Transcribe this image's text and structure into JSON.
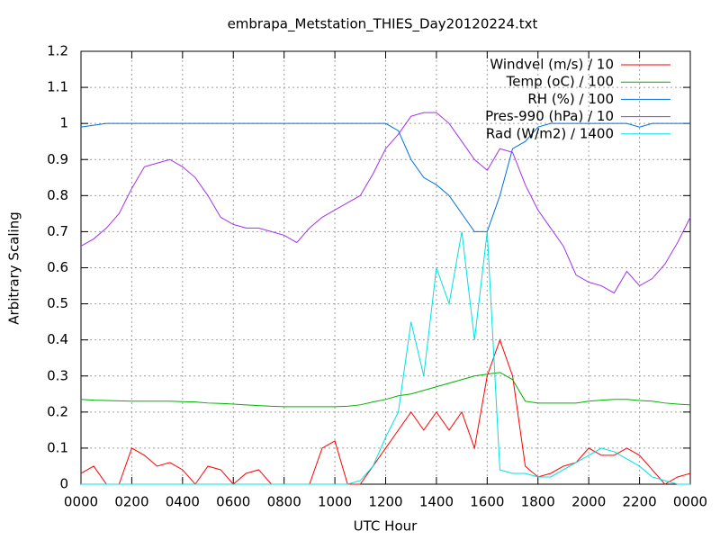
{
  "chart_data": {
    "type": "line",
    "title": "embrapa_Metstation_THIES_Day20120224.txt",
    "x_label": "UTC Hour",
    "y_label": "Arbitrary Scaling",
    "x": [
      0,
      0.5,
      1,
      1.5,
      2,
      2.5,
      3,
      3.5,
      4,
      4.5,
      5,
      5.5,
      6,
      6.5,
      7,
      7.5,
      8,
      8.5,
      9,
      9.5,
      10,
      10.5,
      11,
      11.5,
      12,
      12.5,
      13,
      13.5,
      14,
      14.5,
      15,
      15.5,
      16,
      16.5,
      17,
      17.5,
      18,
      18.5,
      19,
      19.5,
      20,
      20.5,
      21,
      21.5,
      22,
      22.5,
      23,
      23.5,
      24
    ],
    "series": [
      {
        "name": "Windvel (m/s) / 10",
        "color": "#ff0000",
        "values": [
          0.03,
          0.05,
          0,
          0,
          0.1,
          0.08,
          0.05,
          0.06,
          0.04,
          0,
          0.05,
          0.04,
          0,
          0.03,
          0.04,
          0,
          0,
          0,
          0,
          0.1,
          0.12,
          0,
          0,
          0.05,
          0.1,
          0.15,
          0.2,
          0.15,
          0.2,
          0.15,
          0.2,
          0.1,
          0.3,
          0.4,
          0.3,
          0.05,
          0.02,
          0.03,
          0.05,
          0.06,
          0.1,
          0.08,
          0.08,
          0.1,
          0.08,
          0.04,
          0,
          0.02,
          0.03
        ]
      },
      {
        "name": "Temp (oC) / 100",
        "color": "#00b000",
        "values": [
          0.235,
          0.233,
          0.232,
          0.231,
          0.23,
          0.23,
          0.23,
          0.23,
          0.229,
          0.228,
          0.225,
          0.224,
          0.222,
          0.22,
          0.218,
          0.216,
          0.215,
          0.215,
          0.215,
          0.215,
          0.215,
          0.216,
          0.22,
          0.228,
          0.235,
          0.245,
          0.25,
          0.26,
          0.27,
          0.28,
          0.29,
          0.3,
          0.305,
          0.31,
          0.29,
          0.23,
          0.225,
          0.225,
          0.225,
          0.225,
          0.23,
          0.233,
          0.235,
          0.235,
          0.232,
          0.23,
          0.225,
          0.222,
          0.22
        ]
      },
      {
        "name": "RH (%) / 100",
        "color": "#0070e0",
        "values": [
          0.99,
          0.995,
          1,
          1,
          1,
          1,
          1,
          1,
          1,
          1,
          1,
          1,
          1,
          1,
          1,
          1,
          1,
          1,
          1,
          1,
          1,
          1,
          1,
          1,
          1,
          0.98,
          0.9,
          0.85,
          0.83,
          0.8,
          0.75,
          0.7,
          0.7,
          0.8,
          0.93,
          0.95,
          0.99,
          1,
          1,
          1,
          1,
          1,
          1,
          1,
          0.99,
          1,
          1,
          1,
          1
        ]
      },
      {
        "name": "Pres-990 (hPa) / 10",
        "color": "#a030f0",
        "values": [
          0.66,
          0.68,
          0.71,
          0.75,
          0.82,
          0.88,
          0.89,
          0.9,
          0.88,
          0.85,
          0.8,
          0.74,
          0.72,
          0.71,
          0.71,
          0.7,
          0.69,
          0.67,
          0.71,
          0.74,
          0.76,
          0.78,
          0.8,
          0.86,
          0.93,
          0.97,
          1.02,
          1.03,
          1.03,
          1,
          0.95,
          0.9,
          0.87,
          0.93,
          0.92,
          0.83,
          0.76,
          0.71,
          0.66,
          0.58,
          0.56,
          0.55,
          0.53,
          0.59,
          0.55,
          0.57,
          0.61,
          0.67,
          0.74
        ]
      },
      {
        "name": "Rad (W/m2) / 1400",
        "color": "#00e0e0",
        "values": [
          0,
          0,
          0,
          0,
          0,
          0,
          0,
          0,
          0,
          0,
          0,
          0,
          0,
          0,
          0,
          0,
          0,
          0,
          0,
          0,
          0,
          0,
          0.01,
          0.05,
          0.13,
          0.2,
          0.45,
          0.3,
          0.6,
          0.5,
          0.7,
          0.4,
          0.7,
          0.04,
          0.03,
          0.03,
          0.02,
          0.02,
          0.04,
          0.06,
          0.08,
          0.1,
          0.09,
          0.07,
          0.05,
          0.02,
          0.01,
          0,
          0
        ]
      }
    ],
    "xlim": [
      0,
      24
    ],
    "xticks": [
      {
        "value": 0,
        "label": "0000"
      },
      {
        "value": 2,
        "label": "0200"
      },
      {
        "value": 4,
        "label": "0400"
      },
      {
        "value": 6,
        "label": "0600"
      },
      {
        "value": 8,
        "label": "0800"
      },
      {
        "value": 10,
        "label": "1000"
      },
      {
        "value": 12,
        "label": "1200"
      },
      {
        "value": 14,
        "label": "1400"
      },
      {
        "value": 16,
        "label": "1600"
      },
      {
        "value": 18,
        "label": "1800"
      },
      {
        "value": 20,
        "label": "2000"
      },
      {
        "value": 22,
        "label": "2200"
      },
      {
        "value": 24,
        "label": "0000"
      }
    ],
    "ylim": [
      0,
      1.2
    ],
    "yticks": [
      0,
      0.1,
      0.2,
      0.3,
      0.4,
      0.5,
      0.6,
      0.7,
      0.8,
      0.9,
      1,
      1.1,
      1.2
    ],
    "grid": true,
    "legend": "top-right"
  }
}
